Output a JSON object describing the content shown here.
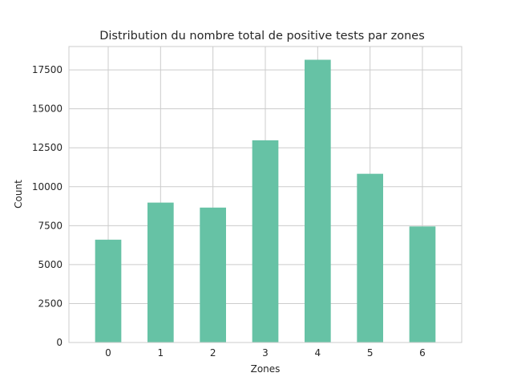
{
  "chart_data": {
    "type": "bar",
    "title": "Distribution du nombre total de positive tests par zones",
    "xlabel": "Zones",
    "ylabel": "Count",
    "categories": [
      "0",
      "1",
      "2",
      "3",
      "4",
      "5",
      "6"
    ],
    "values": [
      6600,
      8980,
      8660,
      12980,
      18150,
      10830,
      7450
    ],
    "ylim": [
      0,
      19000
    ],
    "yticks": [
      0,
      2500,
      5000,
      7500,
      10000,
      12500,
      15000,
      17500
    ],
    "grid": true,
    "bar_color": "#66c2a5",
    "grid_color": "#cccccc"
  }
}
